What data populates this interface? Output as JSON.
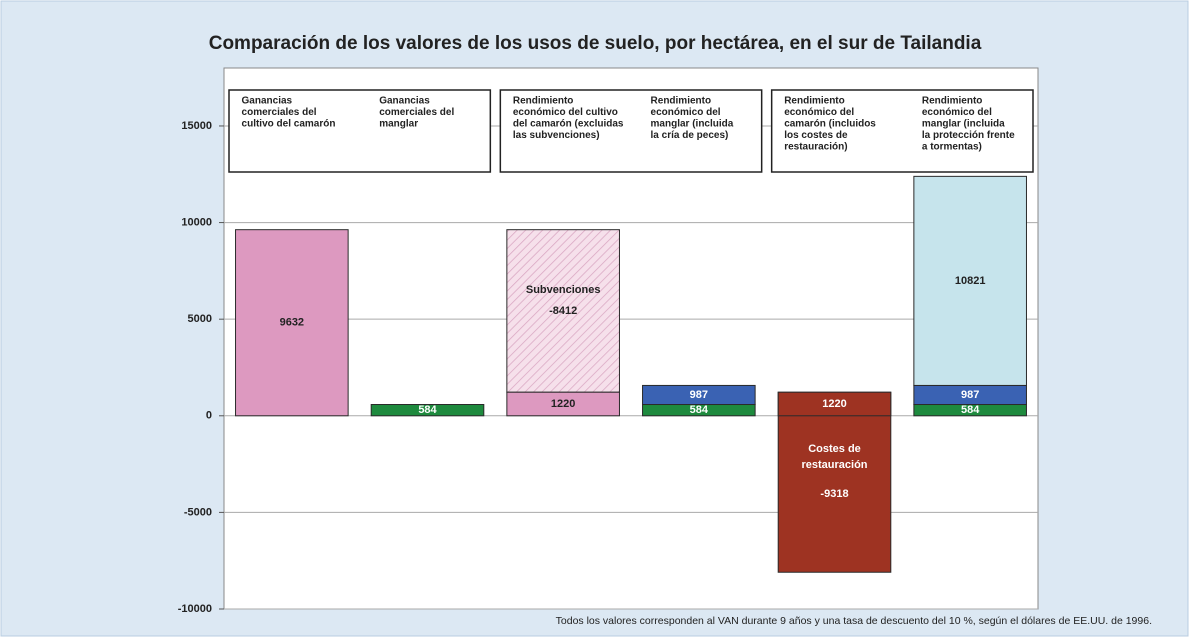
{
  "chart_data": {
    "type": "stacked-bar",
    "title": "Comparación de los valores de los usos de suelo, por hectárea, en el sur de Tailandia",
    "footnote": "Todos los valores corresponden al VAN durante 9 años y una tasa de descuento del 10 %, según el dólares de EE.UU. de 1996.",
    "ylim": [
      -10000,
      18000
    ],
    "yticks": [
      -10000,
      -5000,
      0,
      5000,
      10000,
      15000
    ],
    "grid": true,
    "columns": [
      {
        "category": [
          "Ganancias",
          "comerciales del",
          "cultivo del camarón"
        ],
        "segments": [
          {
            "value": 9632,
            "color": "#dd99c0"
          }
        ]
      },
      {
        "category": [
          "Ganancias",
          "comerciales del",
          "manglar"
        ],
        "segments": [
          {
            "value": 584,
            "color": "#1e8a3e"
          }
        ]
      },
      {
        "category": [
          "Rendimiento",
          "económico del cultivo",
          "del camarón (excluidas",
          "las subvenciones)"
        ],
        "segments": [
          {
            "value": 1220,
            "color": "#dd99c0"
          },
          {
            "value": -8412,
            "color": "#f3d6e5",
            "pattern": "hatched",
            "label": [
              "Subvenciones"
            ]
          }
        ]
      },
      {
        "category": [
          "Rendimiento",
          "económico del",
          "manglar (incluida",
          "la cría de peces)"
        ],
        "segments": [
          {
            "value": 584,
            "color": "#1e8a3e"
          },
          {
            "value": 987,
            "color": "#3a62b3"
          }
        ]
      },
      {
        "category": [
          "Rendimiento",
          "económico del",
          "camarón (incluidos",
          "los costes de",
          "restauración)"
        ],
        "segments": [
          {
            "value": 1220,
            "color": "#9e3322"
          },
          {
            "value": -9318,
            "color": "#9e3322",
            "label": [
              "Costes de",
              "restauración"
            ]
          }
        ]
      },
      {
        "category": [
          "Rendimiento",
          "económico del",
          "manglar (incluida",
          "la protección frente",
          "a tormentas)"
        ],
        "segments": [
          {
            "value": 584,
            "color": "#1e8a3e"
          },
          {
            "value": 987,
            "color": "#3a62b3"
          },
          {
            "value": 10821,
            "color": "#c6e4ec"
          }
        ]
      }
    ]
  }
}
